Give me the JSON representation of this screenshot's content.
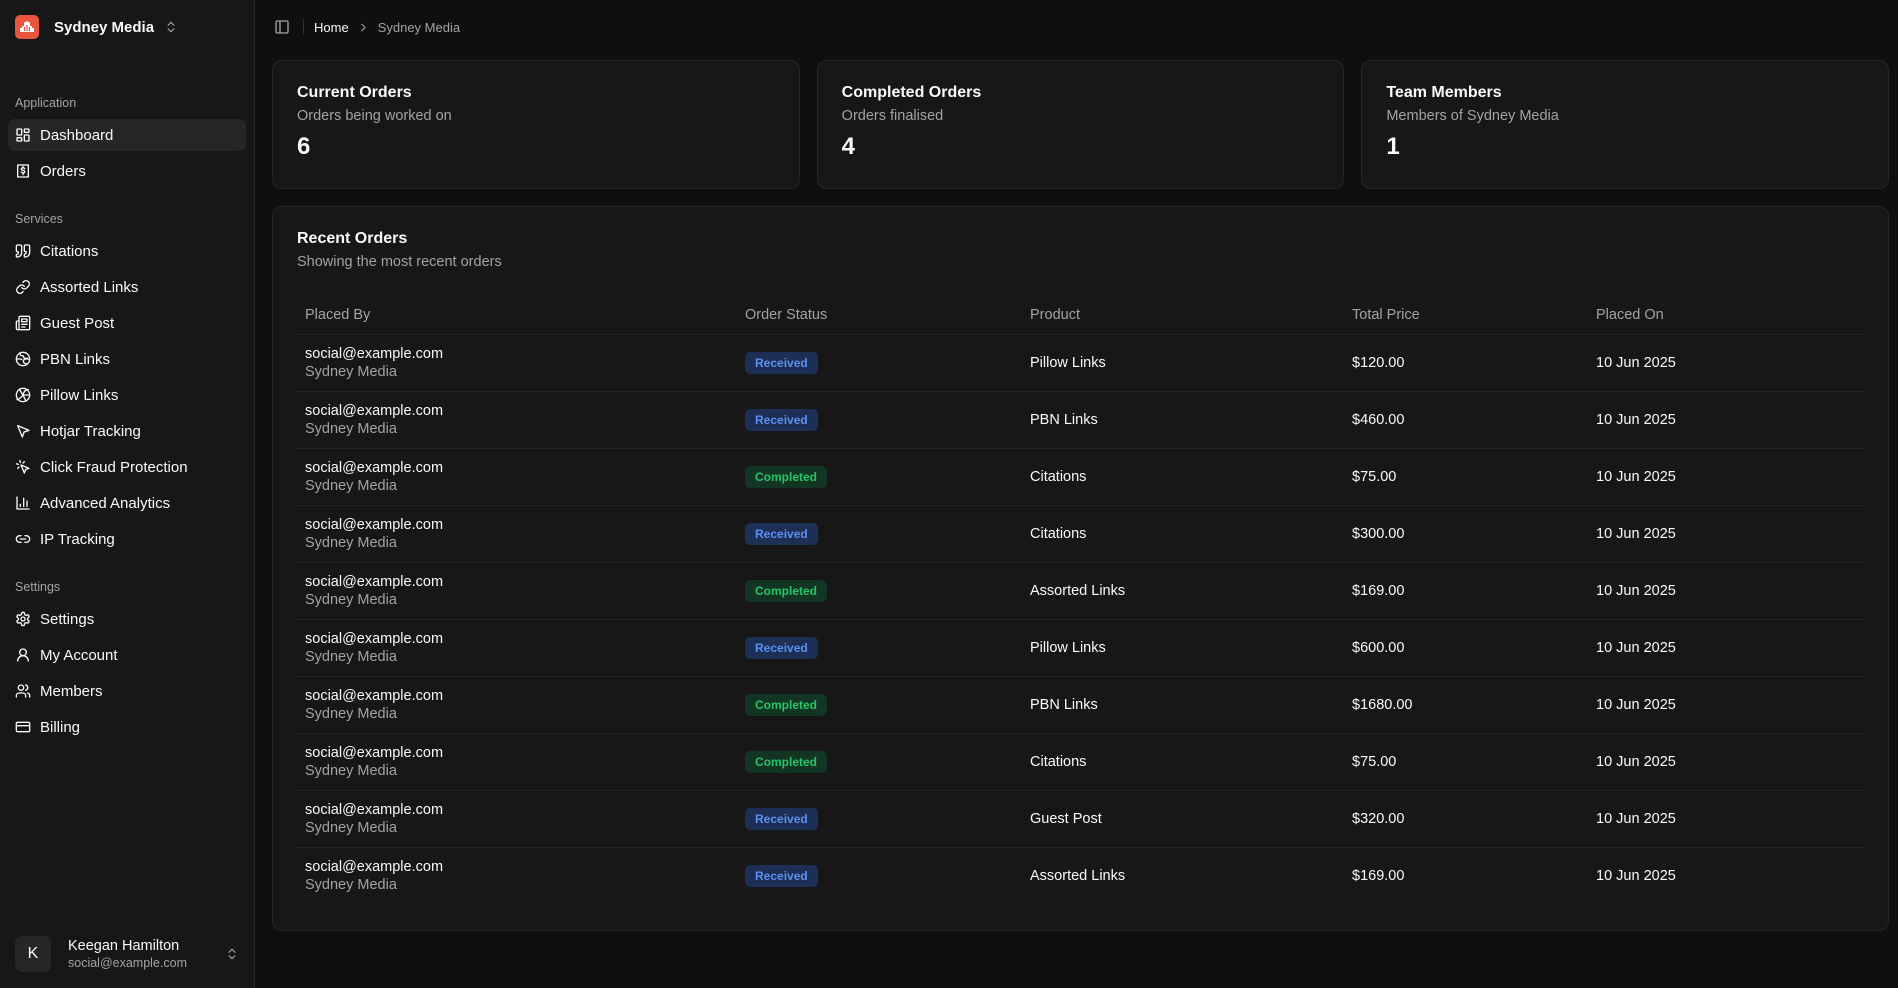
{
  "brand": {
    "name": "Sydney Media"
  },
  "sidebar": {
    "groups": [
      {
        "label": "Application",
        "items": [
          {
            "label": "Dashboard",
            "icon": "dashboard-icon",
            "active": true
          },
          {
            "label": "Orders",
            "icon": "dollar-file-icon"
          }
        ]
      },
      {
        "label": "Services",
        "items": [
          {
            "label": "Citations",
            "icon": "quote-icon"
          },
          {
            "label": "Assorted Links",
            "icon": "link-icon"
          },
          {
            "label": "Guest Post",
            "icon": "newspaper-icon"
          },
          {
            "label": "PBN Links",
            "icon": "globe-icon"
          },
          {
            "label": "Pillow Links",
            "icon": "volleyball-icon"
          },
          {
            "label": "Hotjar Tracking",
            "icon": "cursor-icon"
          },
          {
            "label": "Click Fraud Protection",
            "icon": "click-icon"
          },
          {
            "label": "Advanced Analytics",
            "icon": "bar-chart-icon"
          },
          {
            "label": "IP Tracking",
            "icon": "link-2-icon"
          }
        ]
      },
      {
        "label": "Settings",
        "items": [
          {
            "label": "Settings",
            "icon": "gear-icon"
          },
          {
            "label": "My Account",
            "icon": "user-icon"
          },
          {
            "label": "Members",
            "icon": "users-icon"
          },
          {
            "label": "Billing",
            "icon": "credit-card-icon"
          }
        ]
      }
    ],
    "user": {
      "initial": "K",
      "name": "Keegan Hamilton",
      "email": "social@example.com"
    }
  },
  "breadcrumb": {
    "home": "Home",
    "current": "Sydney Media"
  },
  "stats": [
    {
      "title": "Current Orders",
      "subtitle": "Orders being worked on",
      "value": "6"
    },
    {
      "title": "Completed Orders",
      "subtitle": "Orders finalised",
      "value": "4"
    },
    {
      "title": "Team Members",
      "subtitle": "Members of Sydney Media",
      "value": "1"
    }
  ],
  "recent_orders": {
    "title": "Recent Orders",
    "subtitle": "Showing the most recent orders",
    "columns": [
      "Placed By",
      "Order Status",
      "Product",
      "Total Price",
      "Placed On"
    ],
    "rows": [
      {
        "email": "social@example.com",
        "org": "Sydney Media",
        "status": "Received",
        "product": "Pillow Links",
        "price": "$120.00",
        "date": "10 Jun 2025"
      },
      {
        "email": "social@example.com",
        "org": "Sydney Media",
        "status": "Received",
        "product": "PBN Links",
        "price": "$460.00",
        "date": "10 Jun 2025"
      },
      {
        "email": "social@example.com",
        "org": "Sydney Media",
        "status": "Completed",
        "product": "Citations",
        "price": "$75.00",
        "date": "10 Jun 2025"
      },
      {
        "email": "social@example.com",
        "org": "Sydney Media",
        "status": "Received",
        "product": "Citations",
        "price": "$300.00",
        "date": "10 Jun 2025"
      },
      {
        "email": "social@example.com",
        "org": "Sydney Media",
        "status": "Completed",
        "product": "Assorted Links",
        "price": "$169.00",
        "date": "10 Jun 2025"
      },
      {
        "email": "social@example.com",
        "org": "Sydney Media",
        "status": "Received",
        "product": "Pillow Links",
        "price": "$600.00",
        "date": "10 Jun 2025"
      },
      {
        "email": "social@example.com",
        "org": "Sydney Media",
        "status": "Completed",
        "product": "PBN Links",
        "price": "$1680.00",
        "date": "10 Jun 2025"
      },
      {
        "email": "social@example.com",
        "org": "Sydney Media",
        "status": "Completed",
        "product": "Citations",
        "price": "$75.00",
        "date": "10 Jun 2025"
      },
      {
        "email": "social@example.com",
        "org": "Sydney Media",
        "status": "Received",
        "product": "Guest Post",
        "price": "$320.00",
        "date": "10 Jun 2025"
      },
      {
        "email": "social@example.com",
        "org": "Sydney Media",
        "status": "Received",
        "product": "Assorted Links",
        "price": "$169.00",
        "date": "10 Jun 2025"
      }
    ]
  },
  "colors": {
    "brand": "#e8553f",
    "received": "#5b8ff2",
    "completed": "#28c468"
  }
}
